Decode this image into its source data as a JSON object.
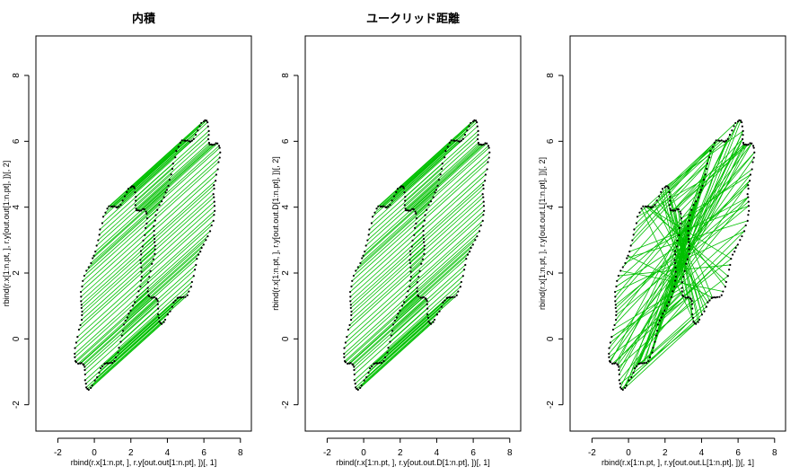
{
  "chart_data": [
    {
      "type": "scatter",
      "title": "内積",
      "xlabel": "rbind(r.x[1:n.pt, ], r.y[out.out[1:n.pt], ])[, 1]",
      "ylabel": "rbind(r.x[1:n.pt, ], r.y[out.out[1:n.pt], ])[, 2]",
      "xlim": [
        -3.2,
        8.6
      ],
      "ylim": [
        -2.8,
        9.2
      ],
      "xticks": [
        -2,
        0,
        2,
        4,
        6,
        8
      ],
      "yticks": [
        -2,
        0,
        2,
        4,
        6,
        8
      ],
      "line_color": "#00c000",
      "point_color": "#000000",
      "matching": "parallel",
      "offset": [
        4.0,
        2.0
      ]
    },
    {
      "type": "scatter",
      "title": "ユークリッド距離",
      "xlabel": "rbind(r.x[1:n.pt, ], r.y[out.out.D[1:n.pt], ])[, 1]",
      "ylabel": "rbind(r.x[1:n.pt, ], r.y[out.out.D[1:n.pt], ])[, 2]",
      "xlim": [
        -3.2,
        8.6
      ],
      "ylim": [
        -2.8,
        9.2
      ],
      "xticks": [
        -2,
        0,
        2,
        4,
        6,
        8
      ],
      "yticks": [
        -2,
        0,
        2,
        4,
        6,
        8
      ],
      "line_color": "#00c000",
      "point_color": "#000000",
      "matching": "parallel",
      "offset": [
        4.0,
        2.0
      ]
    },
    {
      "type": "scatter",
      "title": "",
      "xlabel": "rbind(r.x[1:n.pt, ], r.y[out.out.L[1:n.pt], ])[, 1]",
      "ylabel": "rbind(r.x[1:n.pt, ], r.y[out.out.L[1:n.pt], ])[, 2]",
      "xlim": [
        -3.2,
        8.6
      ],
      "ylim": [
        -2.8,
        9.2
      ],
      "xticks": [
        -2,
        0,
        2,
        4,
        6,
        8
      ],
      "yticks": [
        -2,
        0,
        2,
        4,
        6,
        8
      ],
      "line_color": "#00c000",
      "point_color": "#000000",
      "matching": "crossed",
      "offset": [
        4.0,
        2.0
      ]
    }
  ]
}
